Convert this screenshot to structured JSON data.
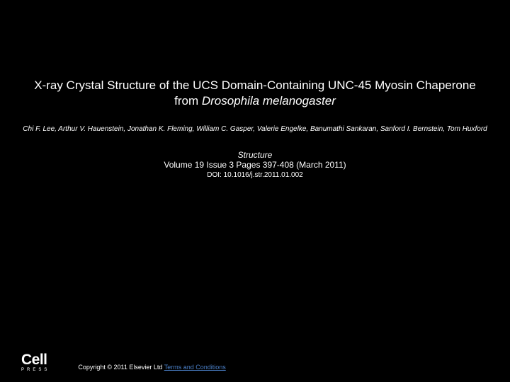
{
  "title": {
    "line1": "X-ray Crystal Structure of the UCS Domain-Containing UNC-45 Myosin Chaperone from",
    "species": "Drosophila melanogaster"
  },
  "authors": "Chi F. Lee, Arthur V. Hauenstein, Jonathan K. Fleming, William C. Gasper, Valerie Engelke, Banumathi Sankaran, Sanford I. Bernstein, Tom Huxford",
  "journal": {
    "name": "Structure",
    "info": "Volume 19 Issue 3 Pages 397-408 (March 2011)",
    "doi": "DOI: 10.1016/j.str.2011.01.002"
  },
  "footer": {
    "logo_main": "Cell",
    "logo_sub": "PRESS",
    "copyright": "Copyright © 2011 Elsevier Ltd",
    "terms": "Terms and Conditions"
  },
  "colors": {
    "background": "#000000",
    "text": "#ffffff",
    "link": "#4a7fc7"
  }
}
